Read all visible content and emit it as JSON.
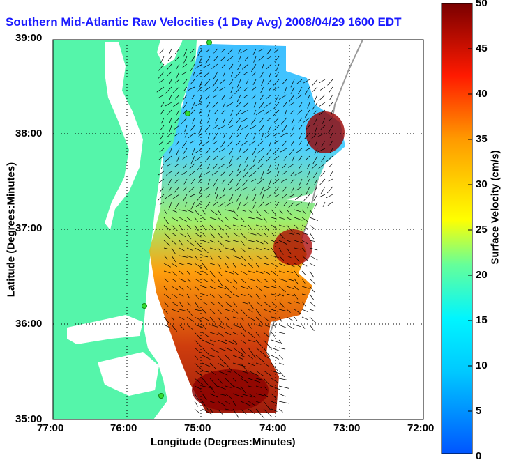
{
  "title": "Southern Mid-Atlantic Raw Velocities (1 Day Avg) 2008/04/29 1600 EDT",
  "x_axis": {
    "label": "Longitude (Degrees:Minutes)",
    "ticks": [
      "77:00",
      "76:00",
      "75:00",
      "74:00",
      "73:00",
      "72:00"
    ]
  },
  "y_axis": {
    "label": "Latitude (Degrees:Minutes)",
    "ticks": [
      "39:00",
      "38:00",
      "37:00",
      "36:00",
      "35:00"
    ]
  },
  "colorbar": {
    "label": "Surface Velocity (cm/s)",
    "ticks": [
      "50",
      "45",
      "40",
      "35",
      "30",
      "25",
      "20",
      "15",
      "10",
      "5",
      "0"
    ],
    "min": 0,
    "max": 50
  },
  "colors": {
    "land": "#55f5aa",
    "water": "#ffffff",
    "title": "#1a1aff",
    "station": "#33dd33"
  }
}
